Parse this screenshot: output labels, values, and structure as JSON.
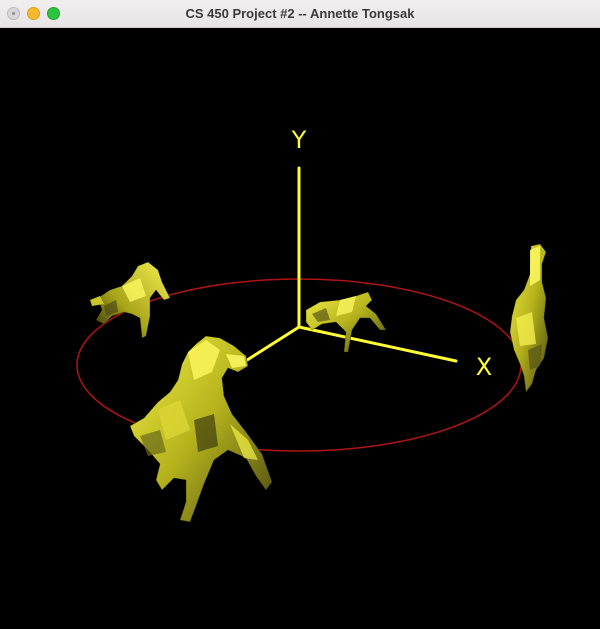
{
  "window": {
    "title": "CS 450 Project #2 -- Annette Tongsak"
  },
  "scene": {
    "axis_labels": {
      "x": "X",
      "y": "Y"
    },
    "colors": {
      "background": "#000000",
      "axes": "#ffff33",
      "orbit": "#b01414",
      "horse_light": "#e6e23a",
      "horse_mid": "#b8b51f",
      "horse_dark": "#3a3a10"
    },
    "objects": [
      "horse-front-rearing",
      "horse-back-left",
      "horse-back-center",
      "horse-right-upright"
    ]
  }
}
